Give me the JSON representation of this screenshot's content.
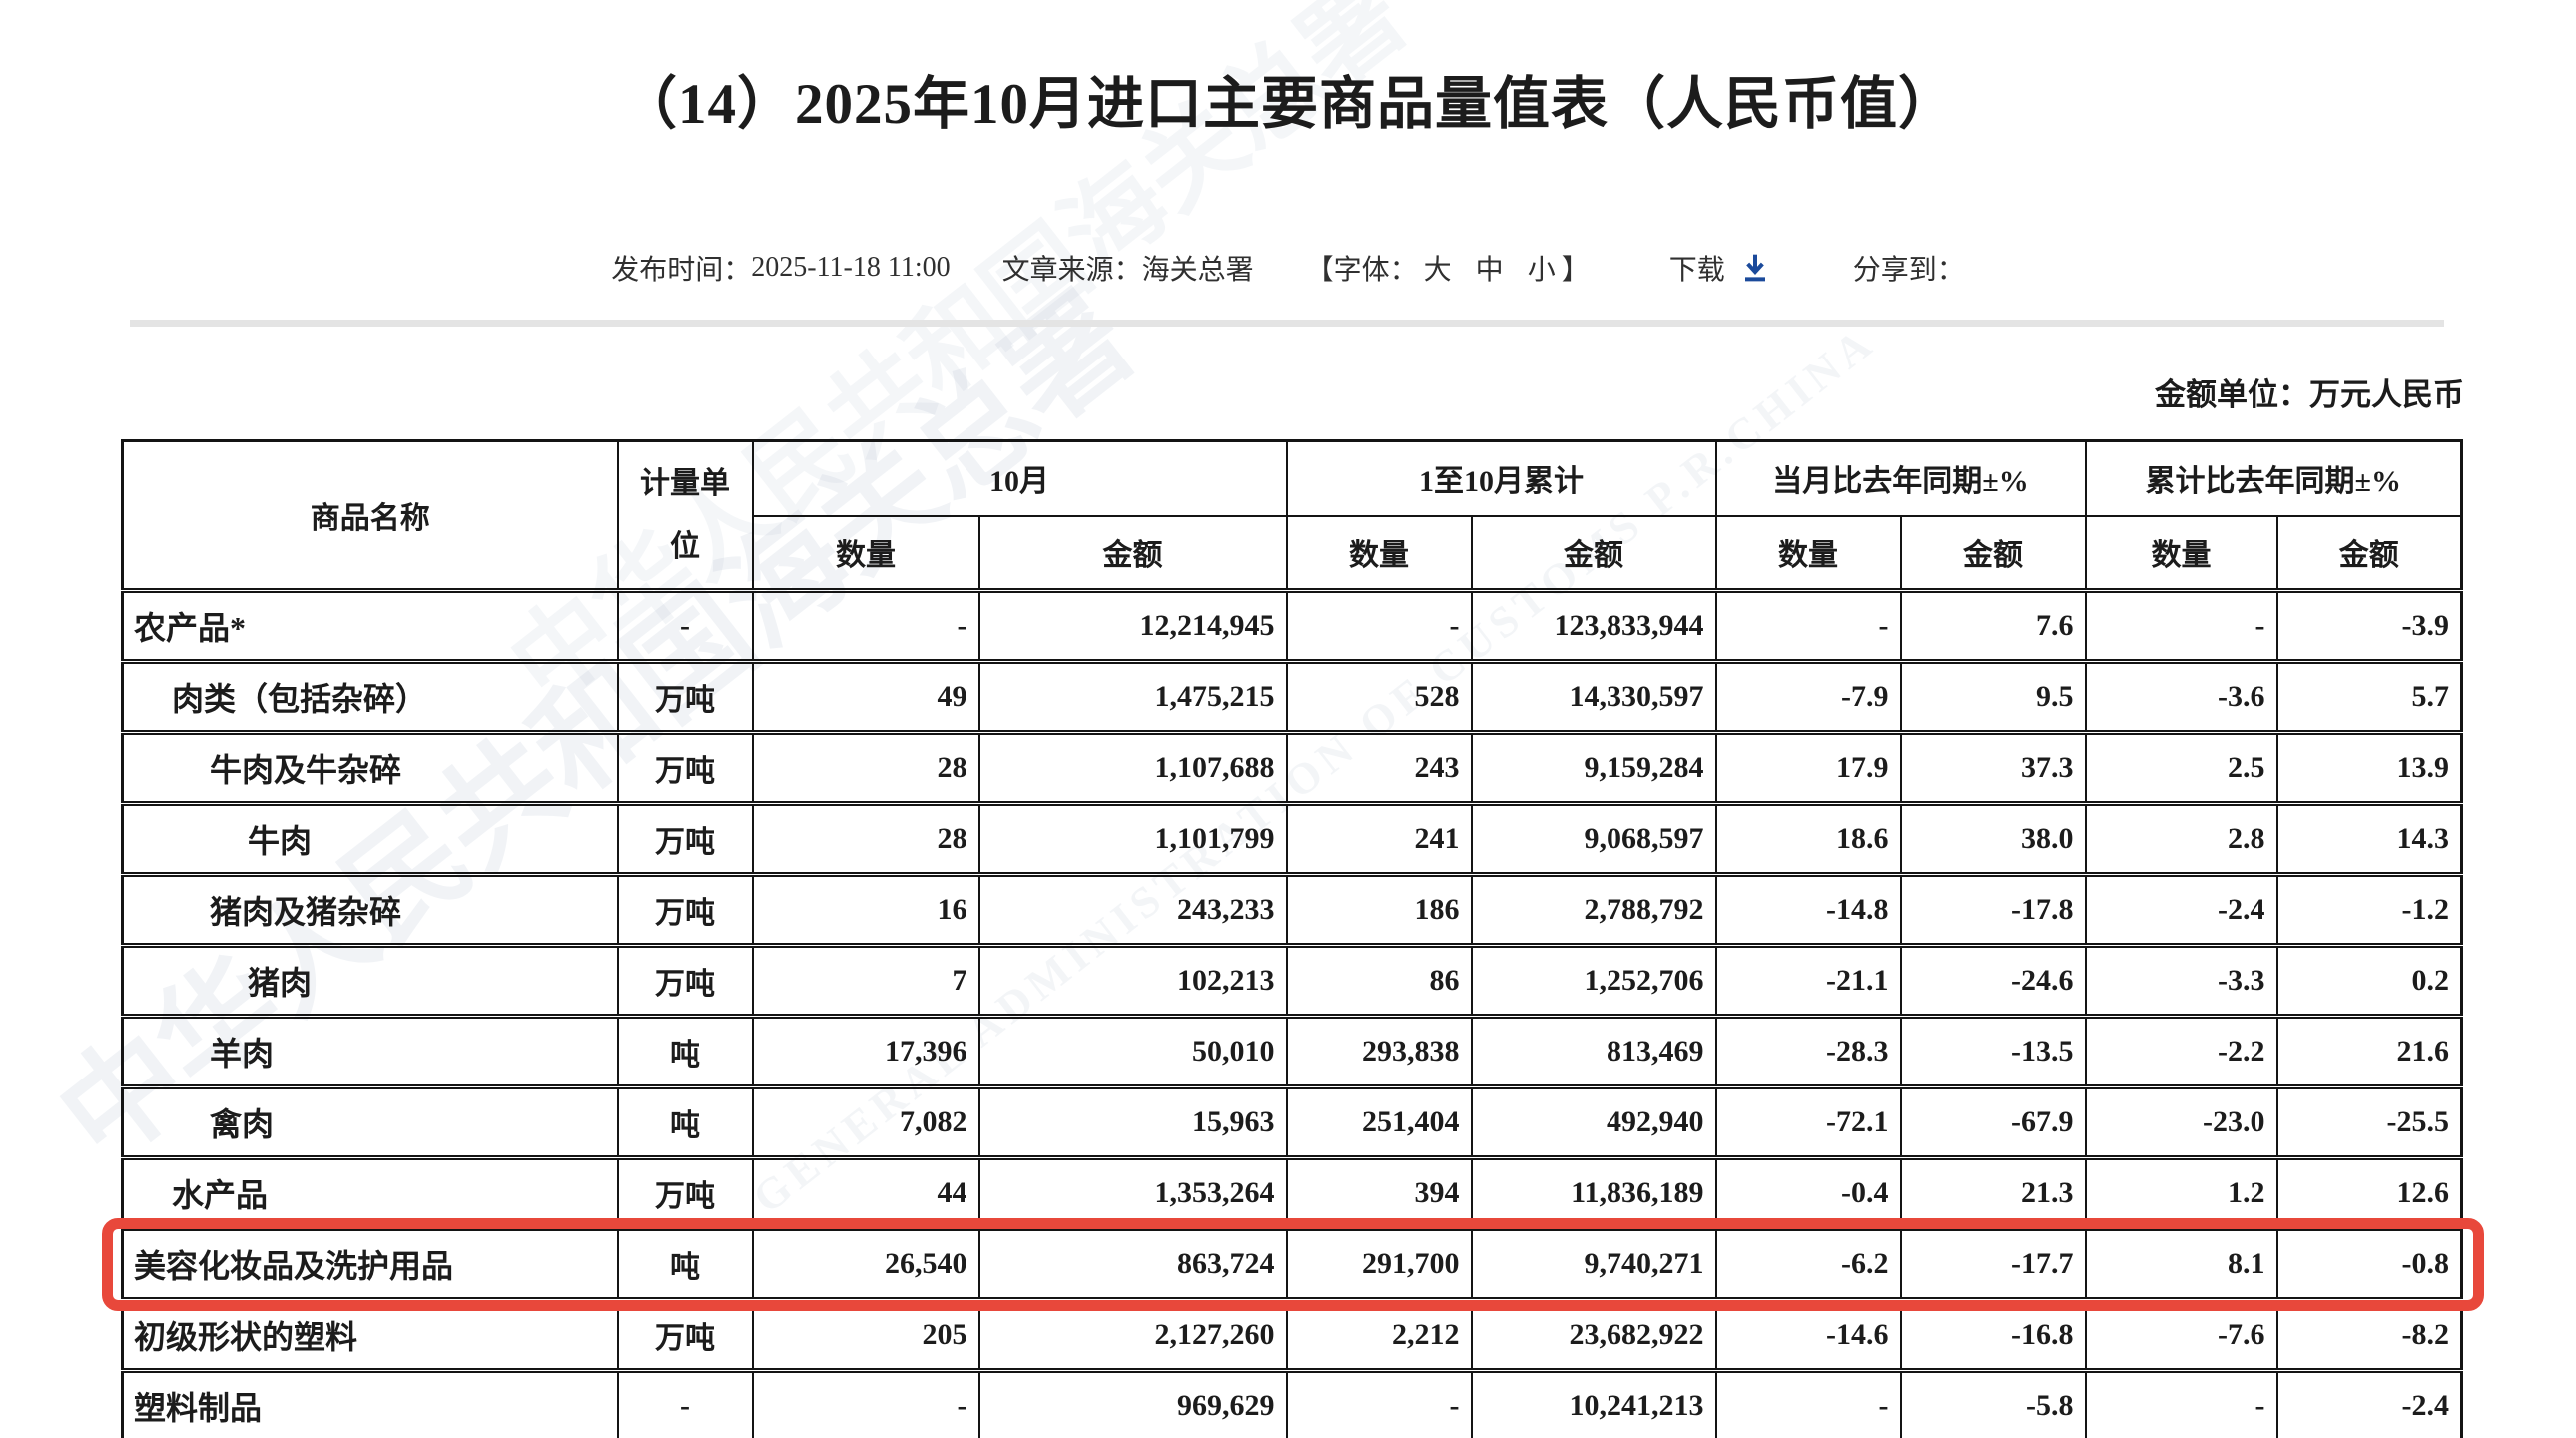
{
  "page": {
    "title": "（14）2025年10月进口主要商品量值表（人民币值）",
    "meta": {
      "publish_label": "发布时间：",
      "publish_time": "2025-11-18 11:00",
      "source_label": "文章来源：",
      "source_value": "海关总署",
      "font_label": "【字体：",
      "font_large": "大",
      "font_medium": "中",
      "font_small": "小",
      "font_bracket_close": "】",
      "download_label": "下载",
      "share_label": "分享到："
    },
    "unit_note": "金额单位：万元人民币"
  },
  "watermark": {
    "cn": "中华人民共和国海关总署",
    "en": "GENERAL ADMINISTRATION OF CUSTOMS P.R.CHINA"
  },
  "colors": {
    "highlight_box": "#e8483b",
    "download_icon": "#1b4a9b"
  },
  "table": {
    "header": {
      "product": "商品名称",
      "unit": "计量单位",
      "groups": [
        {
          "label": "10月",
          "children": [
            "数量",
            "金额"
          ]
        },
        {
          "label": "1至10月累计",
          "children": [
            "数量",
            "金额"
          ]
        },
        {
          "label": "当月比去年同期±%",
          "children": [
            "数量",
            "金额"
          ]
        },
        {
          "label": "累计比去年同期±%",
          "children": [
            "数量",
            "金额"
          ]
        }
      ]
    },
    "rows": [
      {
        "name": "农产品*",
        "indent": 0,
        "unit": "-",
        "m_qty": "-",
        "m_val": "12,214,945",
        "c_qty": "-",
        "c_val": "123,833,944",
        "yoy_m_qty": "-",
        "yoy_m_val": "7.6",
        "yoy_c_qty": "-",
        "yoy_c_val": "-3.9",
        "highlighted": false
      },
      {
        "name": "肉类（包括杂碎）",
        "indent": 1,
        "unit": "万吨",
        "m_qty": "49",
        "m_val": "1,475,215",
        "c_qty": "528",
        "c_val": "14,330,597",
        "yoy_m_qty": "-7.9",
        "yoy_m_val": "9.5",
        "yoy_c_qty": "-3.6",
        "yoy_c_val": "5.7",
        "highlighted": false
      },
      {
        "name": "牛肉及牛杂碎",
        "indent": 2,
        "unit": "万吨",
        "m_qty": "28",
        "m_val": "1,107,688",
        "c_qty": "243",
        "c_val": "9,159,284",
        "yoy_m_qty": "17.9",
        "yoy_m_val": "37.3",
        "yoy_c_qty": "2.5",
        "yoy_c_val": "13.9",
        "highlighted": false
      },
      {
        "name": "牛肉",
        "indent": 3,
        "unit": "万吨",
        "m_qty": "28",
        "m_val": "1,101,799",
        "c_qty": "241",
        "c_val": "9,068,597",
        "yoy_m_qty": "18.6",
        "yoy_m_val": "38.0",
        "yoy_c_qty": "2.8",
        "yoy_c_val": "14.3",
        "highlighted": false
      },
      {
        "name": "猪肉及猪杂碎",
        "indent": 2,
        "unit": "万吨",
        "m_qty": "16",
        "m_val": "243,233",
        "c_qty": "186",
        "c_val": "2,788,792",
        "yoy_m_qty": "-14.8",
        "yoy_m_val": "-17.8",
        "yoy_c_qty": "-2.4",
        "yoy_c_val": "-1.2",
        "highlighted": false
      },
      {
        "name": "猪肉",
        "indent": 3,
        "unit": "万吨",
        "m_qty": "7",
        "m_val": "102,213",
        "c_qty": "86",
        "c_val": "1,252,706",
        "yoy_m_qty": "-21.1",
        "yoy_m_val": "-24.6",
        "yoy_c_qty": "-3.3",
        "yoy_c_val": "0.2",
        "highlighted": false
      },
      {
        "name": "羊肉",
        "indent": 2,
        "unit": "吨",
        "m_qty": "17,396",
        "m_val": "50,010",
        "c_qty": "293,838",
        "c_val": "813,469",
        "yoy_m_qty": "-28.3",
        "yoy_m_val": "-13.5",
        "yoy_c_qty": "-2.2",
        "yoy_c_val": "21.6",
        "highlighted": false
      },
      {
        "name": "禽肉",
        "indent": 2,
        "unit": "吨",
        "m_qty": "7,082",
        "m_val": "15,963",
        "c_qty": "251,404",
        "c_val": "492,940",
        "yoy_m_qty": "-72.1",
        "yoy_m_val": "-67.9",
        "yoy_c_qty": "-23.0",
        "yoy_c_val": "-25.5",
        "highlighted": false
      },
      {
        "name": "水产品",
        "indent": 1,
        "unit": "万吨",
        "m_qty": "44",
        "m_val": "1,353,264",
        "c_qty": "394",
        "c_val": "11,836,189",
        "yoy_m_qty": "-0.4",
        "yoy_m_val": "21.3",
        "yoy_c_qty": "1.2",
        "yoy_c_val": "12.6",
        "highlighted": false
      },
      {
        "name": "美容化妆品及洗护用品",
        "indent": 0,
        "unit": "吨",
        "m_qty": "26,540",
        "m_val": "863,724",
        "c_qty": "291,700",
        "c_val": "9,740,271",
        "yoy_m_qty": "-6.2",
        "yoy_m_val": "-17.7",
        "yoy_c_qty": "8.1",
        "yoy_c_val": "-0.8",
        "highlighted": true
      },
      {
        "name": "初级形状的塑料",
        "indent": 0,
        "unit": "万吨",
        "m_qty": "205",
        "m_val": "2,127,260",
        "c_qty": "2,212",
        "c_val": "23,682,922",
        "yoy_m_qty": "-14.6",
        "yoy_m_val": "-16.8",
        "yoy_c_qty": "-7.6",
        "yoy_c_val": "-8.2",
        "highlighted": false
      },
      {
        "name": "塑料制品",
        "indent": 0,
        "unit": "-",
        "m_qty": "-",
        "m_val": "969,629",
        "c_qty": "-",
        "c_val": "10,241,213",
        "yoy_m_qty": "-",
        "yoy_m_val": "-5.8",
        "yoy_c_qty": "-",
        "yoy_c_val": "-2.4",
        "highlighted": false
      }
    ]
  }
}
